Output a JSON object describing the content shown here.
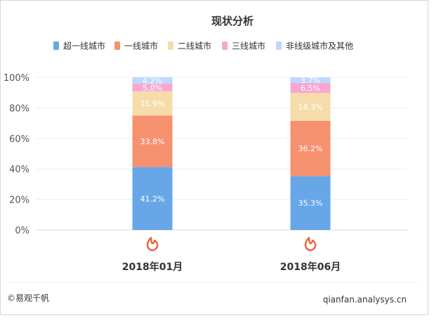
{
  "chart_data": {
    "type": "bar",
    "stacked": true,
    "title": "现状分析",
    "categories": [
      "2018年01月",
      "2018年06月"
    ],
    "series": [
      {
        "name": "超一线城市",
        "color": "#67a7e8",
        "values": [
          41.2,
          35.3
        ],
        "labels": [
          "41.2%",
          "35.3%"
        ]
      },
      {
        "name": "一线城市",
        "color": "#f69170",
        "values": [
          33.8,
          36.2
        ],
        "labels": [
          "33.8%",
          "36.2%"
        ]
      },
      {
        "name": "二线城市",
        "color": "#f6dcaa",
        "values": [
          15.9,
          18.3
        ],
        "labels": [
          "15.9%",
          "18.3%"
        ]
      },
      {
        "name": "三线城市",
        "color": "#f7a7d2",
        "values": [
          5.0,
          6.5
        ],
        "labels": [
          "5.0%",
          "6.5%"
        ]
      },
      {
        "name": "非线级城市及其他",
        "color": "#bcd8ff",
        "values": [
          4.2,
          3.7
        ],
        "labels": [
          "4.2%",
          "3.7%"
        ]
      }
    ],
    "y_ticks": [
      "0%",
      "20%",
      "40%",
      "60%",
      "80%",
      "100%"
    ],
    "ylim": [
      0,
      100
    ],
    "legend": "top",
    "grid": true,
    "category_icon": "flame-logo-icon",
    "icon_color": "#f0603a"
  },
  "footer": {
    "copyright": "©易观千帆",
    "website": "qianfan.analysys.cn"
  }
}
